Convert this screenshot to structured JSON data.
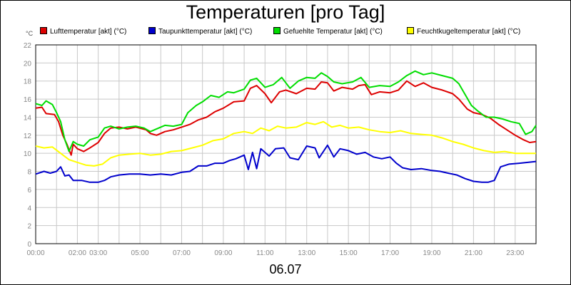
{
  "chart_data": {
    "type": "line",
    "title": "Temperaturen [pro Tag]",
    "unit_label": "°C",
    "date_label": "06.07",
    "ylim": [
      0,
      22
    ],
    "yticks": [
      0,
      2,
      4,
      6,
      8,
      10,
      12,
      14,
      16,
      18,
      20,
      22
    ],
    "xlim": [
      0,
      24
    ],
    "xticks": [
      {
        "h": 0,
        "label": "00:00"
      },
      {
        "h": 2,
        "label": "02:00"
      },
      {
        "h": 3,
        "label": "03:00"
      },
      {
        "h": 5,
        "label": "05:00"
      },
      {
        "h": 7,
        "label": "07:00"
      },
      {
        "h": 9,
        "label": "09:00"
      },
      {
        "h": 11,
        "label": "11:00"
      },
      {
        "h": 13,
        "label": "13:00"
      },
      {
        "h": 15,
        "label": "15:00"
      },
      {
        "h": 17,
        "label": "17:00"
      },
      {
        "h": 19,
        "label": "19:00"
      },
      {
        "h": 21,
        "label": "21:00"
      },
      {
        "h": 23,
        "label": "23:00"
      }
    ],
    "grid": true,
    "legend_position": "top",
    "series": [
      {
        "name": "Lufttemperatur [akt] (°C)",
        "color": "#dd0000",
        "points": [
          [
            0,
            15.0
          ],
          [
            0.3,
            15.1
          ],
          [
            0.5,
            14.4
          ],
          [
            0.9,
            14.3
          ],
          [
            1.1,
            13.5
          ],
          [
            1.3,
            12.0
          ],
          [
            1.5,
            11.0
          ],
          [
            1.7,
            9.8
          ],
          [
            1.8,
            11.0
          ],
          [
            2.0,
            10.5
          ],
          [
            2.3,
            10.2
          ],
          [
            2.6,
            10.6
          ],
          [
            3.0,
            11.2
          ],
          [
            3.3,
            12.2
          ],
          [
            3.6,
            12.8
          ],
          [
            4.0,
            12.9
          ],
          [
            4.4,
            12.7
          ],
          [
            4.8,
            12.9
          ],
          [
            5.3,
            12.6
          ],
          [
            5.5,
            12.2
          ],
          [
            5.8,
            12.0
          ],
          [
            6.2,
            12.4
          ],
          [
            6.6,
            12.6
          ],
          [
            7.0,
            12.9
          ],
          [
            7.4,
            13.2
          ],
          [
            7.8,
            13.7
          ],
          [
            8.2,
            14.0
          ],
          [
            8.6,
            14.6
          ],
          [
            9.0,
            15.0
          ],
          [
            9.5,
            15.7
          ],
          [
            10.0,
            15.8
          ],
          [
            10.3,
            17.2
          ],
          [
            10.6,
            17.5
          ],
          [
            11.0,
            16.6
          ],
          [
            11.3,
            15.6
          ],
          [
            11.7,
            16.8
          ],
          [
            12.0,
            17.0
          ],
          [
            12.5,
            16.6
          ],
          [
            13.0,
            17.2
          ],
          [
            13.4,
            17.1
          ],
          [
            13.7,
            17.9
          ],
          [
            14.0,
            17.8
          ],
          [
            14.3,
            16.9
          ],
          [
            14.7,
            17.3
          ],
          [
            15.2,
            17.1
          ],
          [
            15.5,
            17.5
          ],
          [
            15.8,
            17.6
          ],
          [
            16.1,
            16.5
          ],
          [
            16.5,
            16.8
          ],
          [
            17.0,
            16.7
          ],
          [
            17.4,
            17.0
          ],
          [
            17.8,
            18.0
          ],
          [
            18.2,
            17.4
          ],
          [
            18.6,
            17.8
          ],
          [
            19.0,
            17.3
          ],
          [
            19.5,
            17.0
          ],
          [
            20.0,
            16.6
          ],
          [
            20.3,
            16.0
          ],
          [
            20.7,
            14.9
          ],
          [
            21.0,
            14.5
          ],
          [
            21.4,
            14.3
          ],
          [
            21.8,
            13.9
          ],
          [
            22.2,
            13.2
          ],
          [
            22.6,
            12.6
          ],
          [
            23.0,
            12.0
          ],
          [
            23.4,
            11.5
          ],
          [
            23.7,
            11.2
          ],
          [
            24.0,
            11.3
          ]
        ]
      },
      {
        "name": "Taupunkttemperatur [akt] (°C)",
        "color": "#0000cc",
        "points": [
          [
            0,
            7.7
          ],
          [
            0.4,
            8.0
          ],
          [
            0.7,
            7.8
          ],
          [
            1.0,
            8.0
          ],
          [
            1.2,
            8.5
          ],
          [
            1.4,
            7.5
          ],
          [
            1.6,
            7.6
          ],
          [
            1.8,
            7.0
          ],
          [
            2.2,
            7.0
          ],
          [
            2.6,
            6.8
          ],
          [
            3.0,
            6.8
          ],
          [
            3.3,
            7.0
          ],
          [
            3.6,
            7.4
          ],
          [
            4.0,
            7.6
          ],
          [
            4.5,
            7.7
          ],
          [
            5.0,
            7.7
          ],
          [
            5.5,
            7.6
          ],
          [
            6.0,
            7.7
          ],
          [
            6.5,
            7.6
          ],
          [
            7.0,
            7.9
          ],
          [
            7.4,
            8.0
          ],
          [
            7.8,
            8.6
          ],
          [
            8.2,
            8.6
          ],
          [
            8.6,
            8.9
          ],
          [
            9.0,
            8.9
          ],
          [
            9.3,
            9.2
          ],
          [
            9.6,
            9.4
          ],
          [
            10.0,
            9.8
          ],
          [
            10.2,
            8.2
          ],
          [
            10.4,
            10.1
          ],
          [
            10.6,
            8.3
          ],
          [
            10.8,
            10.5
          ],
          [
            11.2,
            9.7
          ],
          [
            11.5,
            10.5
          ],
          [
            11.9,
            10.6
          ],
          [
            12.2,
            9.5
          ],
          [
            12.6,
            9.3
          ],
          [
            13.0,
            10.8
          ],
          [
            13.4,
            10.6
          ],
          [
            13.6,
            9.5
          ],
          [
            14.0,
            10.9
          ],
          [
            14.3,
            9.6
          ],
          [
            14.6,
            10.5
          ],
          [
            15.0,
            10.3
          ],
          [
            15.4,
            9.9
          ],
          [
            15.8,
            10.1
          ],
          [
            16.2,
            9.6
          ],
          [
            16.6,
            9.4
          ],
          [
            17.0,
            9.6
          ],
          [
            17.3,
            8.9
          ],
          [
            17.6,
            8.4
          ],
          [
            18.0,
            8.2
          ],
          [
            18.5,
            8.3
          ],
          [
            19.0,
            8.1
          ],
          [
            19.4,
            8.0
          ],
          [
            19.8,
            7.8
          ],
          [
            20.2,
            7.6
          ],
          [
            20.6,
            7.2
          ],
          [
            21.0,
            6.9
          ],
          [
            21.4,
            6.8
          ],
          [
            21.7,
            6.8
          ],
          [
            22.0,
            7.0
          ],
          [
            22.3,
            8.5
          ],
          [
            22.7,
            8.8
          ],
          [
            23.2,
            8.9
          ],
          [
            23.6,
            9.0
          ],
          [
            24.0,
            9.1
          ]
        ]
      },
      {
        "name": "Gefuehlte Temperatur [akt] (°C)",
        "color": "#00dd00",
        "points": [
          [
            0,
            15.5
          ],
          [
            0.3,
            15.3
          ],
          [
            0.5,
            15.8
          ],
          [
            0.8,
            15.4
          ],
          [
            1.0,
            14.5
          ],
          [
            1.2,
            13.5
          ],
          [
            1.4,
            11.5
          ],
          [
            1.6,
            10.2
          ],
          [
            1.8,
            11.3
          ],
          [
            2.0,
            11.0
          ],
          [
            2.3,
            10.8
          ],
          [
            2.6,
            11.5
          ],
          [
            3.0,
            11.8
          ],
          [
            3.3,
            12.8
          ],
          [
            3.6,
            13.0
          ],
          [
            4.0,
            12.7
          ],
          [
            4.4,
            12.9
          ],
          [
            4.8,
            13.0
          ],
          [
            5.2,
            12.8
          ],
          [
            5.5,
            12.4
          ],
          [
            5.8,
            12.7
          ],
          [
            6.2,
            13.1
          ],
          [
            6.6,
            13.0
          ],
          [
            7.0,
            13.2
          ],
          [
            7.3,
            14.5
          ],
          [
            7.7,
            15.3
          ],
          [
            8.0,
            15.7
          ],
          [
            8.4,
            16.4
          ],
          [
            8.8,
            16.2
          ],
          [
            9.2,
            16.8
          ],
          [
            9.5,
            16.7
          ],
          [
            10.0,
            17.1
          ],
          [
            10.3,
            18.1
          ],
          [
            10.6,
            18.3
          ],
          [
            11.0,
            17.3
          ],
          [
            11.4,
            17.6
          ],
          [
            11.8,
            18.4
          ],
          [
            12.2,
            17.2
          ],
          [
            12.6,
            18.0
          ],
          [
            13.0,
            18.4
          ],
          [
            13.4,
            18.3
          ],
          [
            13.7,
            18.9
          ],
          [
            14.0,
            18.5
          ],
          [
            14.3,
            17.9
          ],
          [
            14.7,
            17.7
          ],
          [
            15.2,
            17.9
          ],
          [
            15.6,
            18.4
          ],
          [
            16.0,
            17.3
          ],
          [
            16.5,
            17.5
          ],
          [
            17.0,
            17.4
          ],
          [
            17.4,
            17.9
          ],
          [
            17.8,
            18.6
          ],
          [
            18.2,
            19.1
          ],
          [
            18.6,
            18.7
          ],
          [
            19.0,
            18.9
          ],
          [
            19.5,
            18.6
          ],
          [
            20.0,
            18.3
          ],
          [
            20.3,
            17.7
          ],
          [
            20.6,
            16.5
          ],
          [
            20.9,
            15.3
          ],
          [
            21.2,
            14.7
          ],
          [
            21.6,
            14.0
          ],
          [
            22.0,
            14.0
          ],
          [
            22.4,
            13.8
          ],
          [
            22.8,
            13.5
          ],
          [
            23.2,
            13.3
          ],
          [
            23.5,
            12.1
          ],
          [
            23.8,
            12.4
          ],
          [
            24.0,
            13.1
          ]
        ]
      },
      {
        "name": "Feuchtkugeltemperatur [akt] (°C)",
        "color": "#ffff00",
        "points": [
          [
            0,
            10.8
          ],
          [
            0.4,
            10.6
          ],
          [
            0.8,
            10.7
          ],
          [
            1.2,
            10.0
          ],
          [
            1.6,
            9.3
          ],
          [
            2.0,
            9.0
          ],
          [
            2.4,
            8.7
          ],
          [
            2.8,
            8.6
          ],
          [
            3.2,
            8.8
          ],
          [
            3.6,
            9.5
          ],
          [
            4.0,
            9.8
          ],
          [
            4.5,
            9.9
          ],
          [
            5.0,
            10.0
          ],
          [
            5.5,
            9.8
          ],
          [
            6.0,
            9.9
          ],
          [
            6.5,
            10.2
          ],
          [
            7.0,
            10.3
          ],
          [
            7.5,
            10.6
          ],
          [
            8.0,
            10.9
          ],
          [
            8.5,
            11.4
          ],
          [
            9.0,
            11.6
          ],
          [
            9.5,
            12.2
          ],
          [
            10.0,
            12.4
          ],
          [
            10.4,
            12.2
          ],
          [
            10.8,
            12.8
          ],
          [
            11.2,
            12.5
          ],
          [
            11.6,
            13.0
          ],
          [
            12.0,
            12.8
          ],
          [
            12.5,
            12.9
          ],
          [
            13.0,
            13.4
          ],
          [
            13.4,
            13.2
          ],
          [
            13.8,
            13.5
          ],
          [
            14.2,
            12.9
          ],
          [
            14.6,
            13.1
          ],
          [
            15.0,
            12.8
          ],
          [
            15.5,
            12.9
          ],
          [
            16.0,
            12.6
          ],
          [
            16.5,
            12.4
          ],
          [
            17.0,
            12.3
          ],
          [
            17.5,
            12.5
          ],
          [
            18.0,
            12.2
          ],
          [
            18.5,
            12.1
          ],
          [
            19.0,
            12.0
          ],
          [
            19.5,
            11.7
          ],
          [
            20.0,
            11.3
          ],
          [
            20.5,
            11.0
          ],
          [
            21.0,
            10.6
          ],
          [
            21.5,
            10.3
          ],
          [
            22.0,
            10.1
          ],
          [
            22.5,
            10.2
          ],
          [
            23.0,
            10.0
          ],
          [
            23.5,
            10.0
          ],
          [
            24.0,
            10.0
          ]
        ]
      }
    ]
  }
}
